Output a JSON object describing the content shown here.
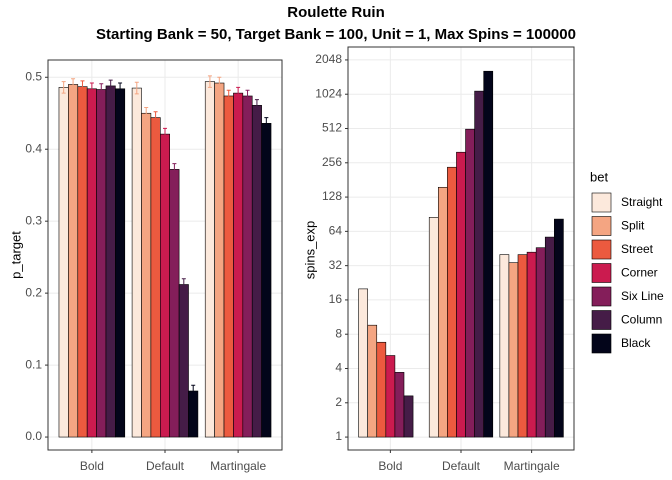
{
  "title": "Roulette Ruin",
  "subtitle": "Starting Bank = 50, Target Bank = 100, Unit = 1, Max Spins = 100000",
  "chart_data": [
    {
      "type": "bar",
      "ylabel": "p_target",
      "categories": [
        "Bold",
        "Default",
        "Martingale"
      ],
      "ylim": [
        -0.018,
        0.524
      ],
      "yticks": [
        {
          "value": 0,
          "label": "0.0"
        },
        0.1,
        0.2,
        0.3,
        0.4,
        0.5
      ],
      "grid": true,
      "error_bars": true,
      "series": [
        {
          "name": "Straight",
          "color": "#FCE9DC",
          "values": [
            0.486,
            0.485,
            0.494
          ],
          "errors": [
            0.008,
            0.008,
            0.008
          ]
        },
        {
          "name": "Split",
          "color": "#F4A582",
          "values": [
            0.49,
            0.45,
            0.492
          ],
          "errors": [
            0.008,
            0.008,
            0.008
          ]
        },
        {
          "name": "Street",
          "color": "#EC5A3F",
          "values": [
            0.487,
            0.444,
            0.474
          ],
          "errors": [
            0.008,
            0.008,
            0.008
          ]
        },
        {
          "name": "Corner",
          "color": "#CB1B4F",
          "values": [
            0.484,
            0.421,
            0.478
          ],
          "errors": [
            0.008,
            0.008,
            0.008
          ]
        },
        {
          "name": "Six Line",
          "color": "#841E5A",
          "values": [
            0.483,
            0.372,
            0.474
          ],
          "errors": [
            0.008,
            0.008,
            0.008
          ]
        },
        {
          "name": "Column",
          "color": "#451C47",
          "values": [
            0.488,
            0.212,
            0.461
          ],
          "errors": [
            0.008,
            0.008,
            0.008
          ]
        },
        {
          "name": "Black",
          "color": "#03051A",
          "values": [
            0.484,
            0.064,
            0.436
          ],
          "errors": [
            0.008,
            0.008,
            0.008
          ]
        }
      ]
    },
    {
      "type": "bar",
      "ylabel": "spins_exp",
      "log_scale": true,
      "log_base": 2,
      "categories": [
        "Bold",
        "Default",
        "Martingale"
      ],
      "ylim": [
        0.77,
        2660
      ],
      "yticks": [
        1,
        2,
        4,
        8,
        16,
        32,
        64,
        128,
        256,
        512,
        1024,
        2048
      ],
      "grid": true,
      "legend": {
        "title": "bet",
        "position": "right"
      },
      "series": [
        {
          "name": "Straight",
          "color": "#FCE9DC",
          "values": [
            20,
            85,
            40
          ]
        },
        {
          "name": "Split",
          "color": "#F4A582",
          "values": [
            9.6,
            156,
            34
          ]
        },
        {
          "name": "Street",
          "color": "#EC5A3F",
          "values": [
            6.8,
            234,
            40
          ]
        },
        {
          "name": "Corner",
          "color": "#CB1B4F",
          "values": [
            5.2,
            317,
            42
          ]
        },
        {
          "name": "Six Line",
          "color": "#841E5A",
          "values": [
            3.7,
            505,
            46
          ]
        },
        {
          "name": "Column",
          "color": "#451C47",
          "values": [
            2.3,
            1090,
            57
          ]
        },
        {
          "name": "Black",
          "color": "#03051A",
          "values": [
            1,
            1630,
            82
          ]
        }
      ]
    }
  ]
}
